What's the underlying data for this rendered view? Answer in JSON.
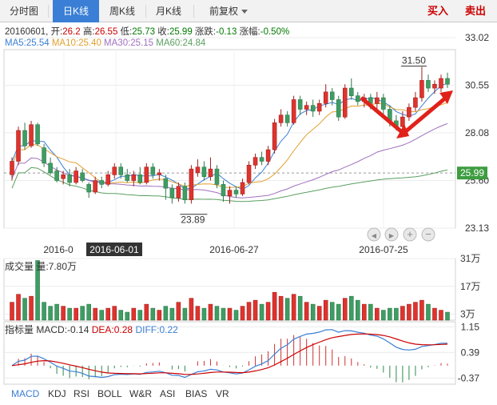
{
  "tabs": [
    {
      "label": "分时图",
      "active": false
    },
    {
      "label": "日K线",
      "active": true
    },
    {
      "label": "周K线",
      "active": false
    },
    {
      "label": "月K线",
      "active": false
    },
    {
      "label": "前复权",
      "active": false,
      "dropdown": true
    }
  ],
  "actions": {
    "buy": "买入",
    "sell": "卖出",
    "buy_color": "#cc0000",
    "sell_color": "#cc0000"
  },
  "quote": {
    "date": "20160601",
    "open_label": "开:",
    "open": "26.2",
    "high_label": "高:",
    "high": "26.55",
    "low_label": "低:",
    "low": "25.73",
    "close_label": "收:",
    "close": "25.99",
    "change_label": "涨跌:",
    "change": "-0.13",
    "pct_label": "涨幅:",
    "pct": "-0.50%"
  },
  "ma": {
    "ma5": "MA5:25.54",
    "ma10": "MA10:25.40",
    "ma30": "MA30:25.15",
    "ma60": "MA60:24.84",
    "colors": {
      "ma5": "#3a7fd5",
      "ma10": "#e0a030",
      "ma30": "#a070c0",
      "ma60": "#5aa060"
    }
  },
  "price_axis": [
    "33.02",
    "30.55",
    "28.08",
    "25.60",
    "23.13"
  ],
  "current_price": "25.99",
  "annotations": {
    "high_mark": "31.50",
    "low_mark": "23.89"
  },
  "date_axis": [
    "2016-0",
    "2016-06-01",
    "2016-06-27",
    "2016-07-25"
  ],
  "zoom_controls": [
    "prev",
    "next",
    "zoom-in",
    "zoom-out"
  ],
  "volume": {
    "title": "成交量 量:7.80万",
    "axis": [
      "31万",
      "17万",
      "3万"
    ]
  },
  "macd": {
    "title": "指标量",
    "macd_label": "MACD:-0.14",
    "dea_label": "DEA:0.28",
    "diff_label": "DIFF:0.22",
    "axis": [
      "1.15",
      "0.39",
      "-0.37"
    ],
    "colors": {
      "macd": "#333333",
      "dea": "#cc0000",
      "diff": "#3a7fd5"
    }
  },
  "indicator_tabs": [
    {
      "label": "MACD",
      "active": true
    },
    {
      "label": "KDJ",
      "active": false
    },
    {
      "label": "RSI",
      "active": false
    },
    {
      "label": "BOLL",
      "active": false
    },
    {
      "label": "W&R",
      "active": false
    },
    {
      "label": "ASI",
      "active": false
    },
    {
      "label": "BIAS",
      "active": false
    },
    {
      "label": "VR",
      "active": false
    }
  ],
  "chart_data": {
    "type": "candlestick",
    "price_range": [
      23.13,
      33.02
    ],
    "candles": [
      {
        "o": 25.9,
        "c": 26.6,
        "h": 26.8,
        "l": 25.6,
        "v": 9
      },
      {
        "o": 26.6,
        "c": 28.2,
        "h": 28.4,
        "l": 26.4,
        "v": 13
      },
      {
        "o": 28.2,
        "c": 27.4,
        "h": 28.6,
        "l": 27.2,
        "v": 11
      },
      {
        "o": 27.4,
        "c": 28.5,
        "h": 28.7,
        "l": 27.3,
        "v": 12
      },
      {
        "o": 28.5,
        "c": 27.5,
        "h": 28.6,
        "l": 27.4,
        "v": 30
      },
      {
        "o": 27.3,
        "c": 26.5,
        "h": 27.5,
        "l": 26.3,
        "v": 9
      },
      {
        "o": 26.5,
        "c": 26.0,
        "h": 26.8,
        "l": 25.9,
        "v": 7
      },
      {
        "o": 26.1,
        "c": 25.6,
        "h": 26.3,
        "l": 25.5,
        "v": 8
      },
      {
        "o": 25.7,
        "c": 25.9,
        "h": 26.1,
        "l": 25.4,
        "v": 7
      },
      {
        "o": 25.9,
        "c": 25.5,
        "h": 26.2,
        "l": 25.3,
        "v": 6
      },
      {
        "o": 25.5,
        "c": 26.1,
        "h": 26.3,
        "l": 25.4,
        "v": 6
      },
      {
        "o": 26.0,
        "c": 25.6,
        "h": 26.2,
        "l": 25.5,
        "v": 7
      },
      {
        "o": 25.4,
        "c": 25.0,
        "h": 25.5,
        "l": 24.7,
        "v": 8
      },
      {
        "o": 25.0,
        "c": 25.6,
        "h": 25.8,
        "l": 24.9,
        "v": 6
      },
      {
        "o": 25.6,
        "c": 25.4,
        "h": 25.8,
        "l": 25.2,
        "v": 5
      },
      {
        "o": 25.4,
        "c": 25.9,
        "h": 26.1,
        "l": 25.3,
        "v": 6
      },
      {
        "o": 25.9,
        "c": 26.3,
        "h": 26.5,
        "l": 25.7,
        "v": 7
      },
      {
        "o": 26.3,
        "c": 25.9,
        "h": 26.5,
        "l": 25.7,
        "v": 5
      },
      {
        "o": 25.9,
        "c": 25.6,
        "h": 26.2,
        "l": 25.5,
        "v": 4
      },
      {
        "o": 25.6,
        "c": 25.9,
        "h": 26.1,
        "l": 25.3,
        "v": 6
      },
      {
        "o": 25.9,
        "c": 25.5,
        "h": 26.3,
        "l": 25.4,
        "v": 5
      },
      {
        "o": 25.5,
        "c": 26.3,
        "h": 26.5,
        "l": 25.4,
        "v": 8
      },
      {
        "o": 26.3,
        "c": 25.9,
        "h": 26.5,
        "l": 25.7,
        "v": 6
      },
      {
        "o": 25.9,
        "c": 26.0,
        "h": 26.2,
        "l": 25.6,
        "v": 5
      },
      {
        "o": 25.7,
        "c": 25.2,
        "h": 25.9,
        "l": 24.6,
        "v": 7
      },
      {
        "o": 25.2,
        "c": 24.7,
        "h": 25.4,
        "l": 24.4,
        "v": 6
      },
      {
        "o": 24.7,
        "c": 25.3,
        "h": 25.5,
        "l": 24.5,
        "v": 9
      },
      {
        "o": 25.3,
        "c": 24.6,
        "h": 25.5,
        "l": 24.4,
        "v": 6
      },
      {
        "o": 24.6,
        "c": 26.2,
        "h": 26.4,
        "l": 24.4,
        "v": 11
      },
      {
        "o": 26.0,
        "c": 26.3,
        "h": 26.7,
        "l": 25.8,
        "v": 7
      },
      {
        "o": 26.3,
        "c": 25.8,
        "h": 26.6,
        "l": 25.6,
        "v": 6
      },
      {
        "o": 25.8,
        "c": 26.2,
        "h": 26.8,
        "l": 25.6,
        "v": 8
      },
      {
        "o": 26.2,
        "c": 25.4,
        "h": 26.4,
        "l": 25.2,
        "v": 7
      },
      {
        "o": 25.4,
        "c": 24.8,
        "h": 25.6,
        "l": 24.5,
        "v": 6
      },
      {
        "o": 24.8,
        "c": 25.1,
        "h": 25.3,
        "l": 24.4,
        "v": 6
      },
      {
        "o": 25.1,
        "c": 24.9,
        "h": 25.3,
        "l": 24.7,
        "v": 5
      },
      {
        "o": 24.9,
        "c": 25.5,
        "h": 25.7,
        "l": 24.8,
        "v": 7
      },
      {
        "o": 25.5,
        "c": 26.4,
        "h": 26.6,
        "l": 25.4,
        "v": 9
      },
      {
        "o": 26.4,
        "c": 26.8,
        "h": 27.0,
        "l": 26.2,
        "v": 10
      },
      {
        "o": 26.8,
        "c": 26.6,
        "h": 27.1,
        "l": 26.4,
        "v": 8
      },
      {
        "o": 26.6,
        "c": 27.2,
        "h": 27.4,
        "l": 26.4,
        "v": 9
      },
      {
        "o": 27.2,
        "c": 28.6,
        "h": 28.8,
        "l": 27.0,
        "v": 14
      },
      {
        "o": 28.6,
        "c": 29.0,
        "h": 29.3,
        "l": 28.4,
        "v": 12
      },
      {
        "o": 29.0,
        "c": 28.6,
        "h": 29.2,
        "l": 28.4,
        "v": 11
      },
      {
        "o": 28.6,
        "c": 29.8,
        "h": 30.0,
        "l": 28.5,
        "v": 13
      },
      {
        "o": 29.8,
        "c": 29.3,
        "h": 30.0,
        "l": 29.0,
        "v": 12
      },
      {
        "o": 29.3,
        "c": 29.5,
        "h": 29.7,
        "l": 29.0,
        "v": 9
      },
      {
        "o": 29.5,
        "c": 29.2,
        "h": 29.8,
        "l": 28.9,
        "v": 8
      },
      {
        "o": 29.2,
        "c": 29.6,
        "h": 29.8,
        "l": 29.0,
        "v": 7
      },
      {
        "o": 29.6,
        "c": 30.2,
        "h": 30.6,
        "l": 29.4,
        "v": 10
      },
      {
        "o": 30.2,
        "c": 29.8,
        "h": 30.4,
        "l": 29.5,
        "v": 9
      },
      {
        "o": 29.8,
        "c": 28.9,
        "h": 30.0,
        "l": 28.7,
        "v": 8
      },
      {
        "o": 28.9,
        "c": 30.4,
        "h": 30.6,
        "l": 28.8,
        "v": 11
      },
      {
        "o": 30.4,
        "c": 30.0,
        "h": 30.9,
        "l": 29.8,
        "v": 12
      },
      {
        "o": 30.0,
        "c": 29.7,
        "h": 30.2,
        "l": 29.5,
        "v": 10
      },
      {
        "o": 29.7,
        "c": 29.9,
        "h": 30.1,
        "l": 29.4,
        "v": 8
      },
      {
        "o": 29.9,
        "c": 29.6,
        "h": 30.1,
        "l": 29.3,
        "v": 8
      },
      {
        "o": 29.6,
        "c": 29.9,
        "h": 30.2,
        "l": 29.3,
        "v": 6
      },
      {
        "o": 29.9,
        "c": 29.3,
        "h": 30.1,
        "l": 28.9,
        "v": 5
      },
      {
        "o": 29.3,
        "c": 28.7,
        "h": 29.5,
        "l": 28.4,
        "v": 6
      },
      {
        "o": 28.7,
        "c": 28.4,
        "h": 29.0,
        "l": 28.2,
        "v": 6
      },
      {
        "o": 28.4,
        "c": 28.9,
        "h": 29.2,
        "l": 28.2,
        "v": 7
      },
      {
        "o": 28.9,
        "c": 29.4,
        "h": 29.6,
        "l": 28.7,
        "v": 8
      },
      {
        "o": 29.4,
        "c": 29.9,
        "h": 30.2,
        "l": 29.2,
        "v": 9
      },
      {
        "o": 29.9,
        "c": 30.8,
        "h": 31.5,
        "l": 29.7,
        "v": 10
      },
      {
        "o": 30.8,
        "c": 30.4,
        "h": 31.1,
        "l": 30.2,
        "v": 8
      },
      {
        "o": 30.4,
        "c": 30.6,
        "h": 30.8,
        "l": 30.1,
        "v": 6
      },
      {
        "o": 30.4,
        "c": 30.9,
        "h": 31.1,
        "l": 30.2,
        "v": 5
      },
      {
        "o": 30.9,
        "c": 30.6,
        "h": 31.2,
        "l": 30.4,
        "v": 4
      }
    ]
  }
}
